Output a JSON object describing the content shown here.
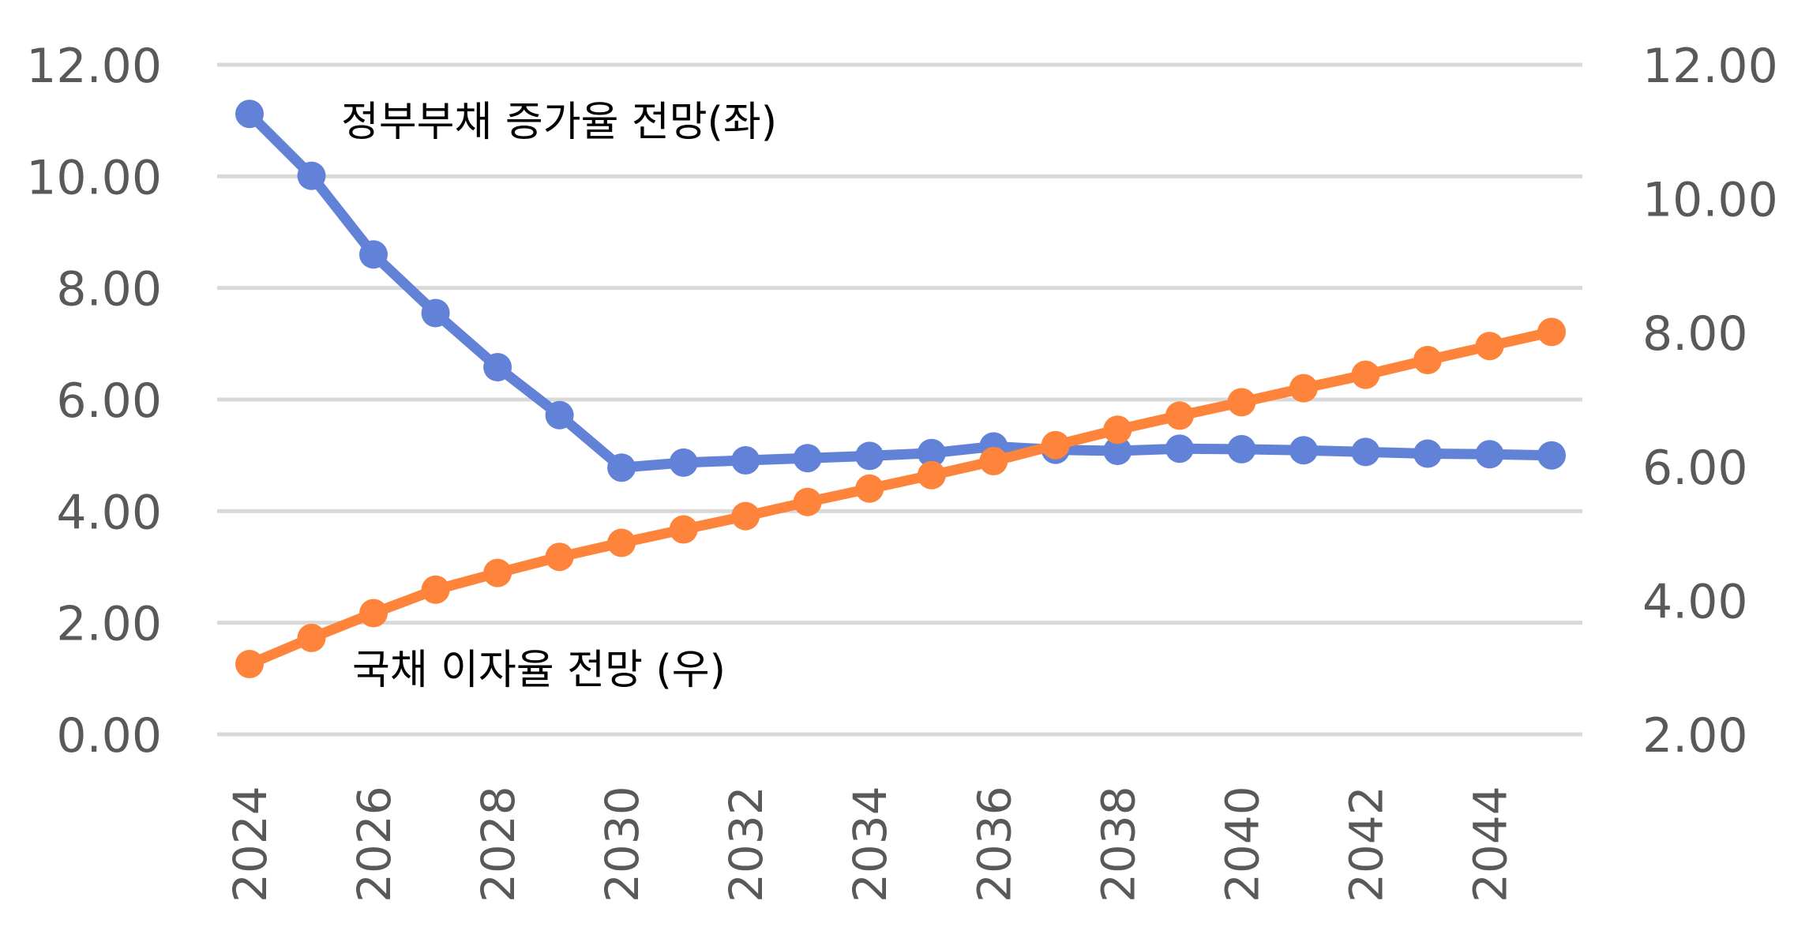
{
  "chart_data": {
    "type": "line",
    "title": "",
    "xlabel": "",
    "ylabel_left": "",
    "ylabel_right": "",
    "grid": true,
    "legend": "none",
    "x": [
      2024,
      2025,
      2026,
      2027,
      2028,
      2029,
      2030,
      2031,
      2032,
      2033,
      2034,
      2035,
      2036,
      2037,
      2038,
      2039,
      2040,
      2041,
      2042,
      2043,
      2044,
      2045
    ],
    "x_tick_labels": [
      "2024",
      "2026",
      "2028",
      "2030",
      "2032",
      "2034",
      "2036",
      "2038",
      "2040",
      "2042",
      "2044"
    ],
    "y_left": {
      "range": [
        0,
        12
      ],
      "tick_labels": [
        "0.00",
        "2.00",
        "4.00",
        "6.00",
        "8.00",
        "10.00",
        "12.00"
      ],
      "ticks": [
        0,
        2,
        4,
        6,
        8,
        10,
        12
      ]
    },
    "y_right": {
      "range": [
        2,
        12
      ],
      "tick_labels": [
        "2.00",
        "4.00",
        "6.00",
        "8.00",
        "10.00",
        "12.00"
      ],
      "ticks": [
        2,
        4,
        6,
        8,
        10,
        12
      ]
    },
    "series": [
      {
        "name": "정부부채 증가율 전망(좌)",
        "axis": "left",
        "color": "#6182D6",
        "values": [
          11.12,
          10.01,
          8.6,
          7.55,
          6.58,
          5.72,
          4.78,
          4.87,
          4.91,
          4.95,
          4.99,
          5.04,
          5.16,
          5.1,
          5.08,
          5.12,
          5.11,
          5.09,
          5.06,
          5.03,
          5.02,
          5.0
        ]
      },
      {
        "name": "국채 이자율 전망 (우)",
        "axis": "right",
        "color": "#FE843B",
        "values": [
          3.05,
          3.44,
          3.81,
          4.16,
          4.41,
          4.65,
          4.86,
          5.06,
          5.26,
          5.47,
          5.67,
          5.87,
          6.08,
          6.32,
          6.55,
          6.76,
          6.96,
          7.17,
          7.37,
          7.59,
          7.8,
          8.01
        ]
      }
    ],
    "annotations": [
      {
        "text": "정부부채 증가율 전망(좌)",
        "series": 0
      },
      {
        "text": "국채 이자율 전망 (우)",
        "series": 1
      }
    ]
  }
}
